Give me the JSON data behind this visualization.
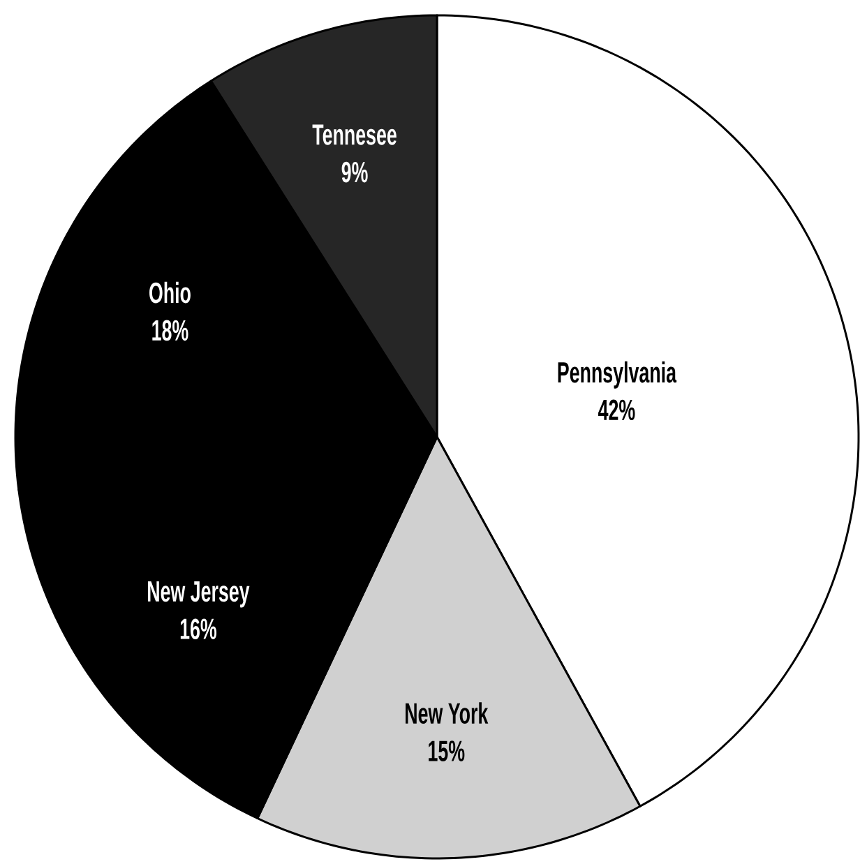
{
  "chart_data": {
    "type": "pie",
    "categories": [
      "Pennsylvania",
      "New York",
      "New Jersey",
      "Ohio",
      "Tennesee"
    ],
    "values": [
      42,
      15,
      16,
      18,
      9
    ],
    "value_labels": [
      "42%",
      "15%",
      "16%",
      "18%",
      "9%"
    ],
    "colors": [
      "#ffffff",
      "#d0d0d0",
      "#000000",
      "#000000",
      "#262626"
    ]
  }
}
